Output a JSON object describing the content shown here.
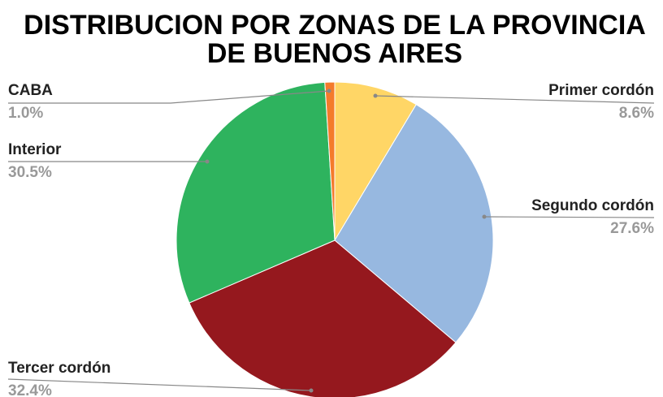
{
  "chart_data": {
    "type": "pie",
    "title": [
      "DISTRIBUCION POR ZONAS DE LA PROVINCIA",
      "DE BUENOS AIRES"
    ],
    "categories": [
      "Primer cordón",
      "Segundo cordón",
      "Tercer cordón",
      "Interior",
      "CABA"
    ],
    "values": [
      8.6,
      27.6,
      32.4,
      30.5,
      1.0
    ],
    "value_labels": [
      "8.6%",
      "27.6%",
      "32.4%",
      "30.5%",
      "1.0%"
    ],
    "colors": [
      "#ffd666",
      "#97b8e0",
      "#95181e",
      "#2eb35e",
      "#f47b2b"
    ]
  }
}
